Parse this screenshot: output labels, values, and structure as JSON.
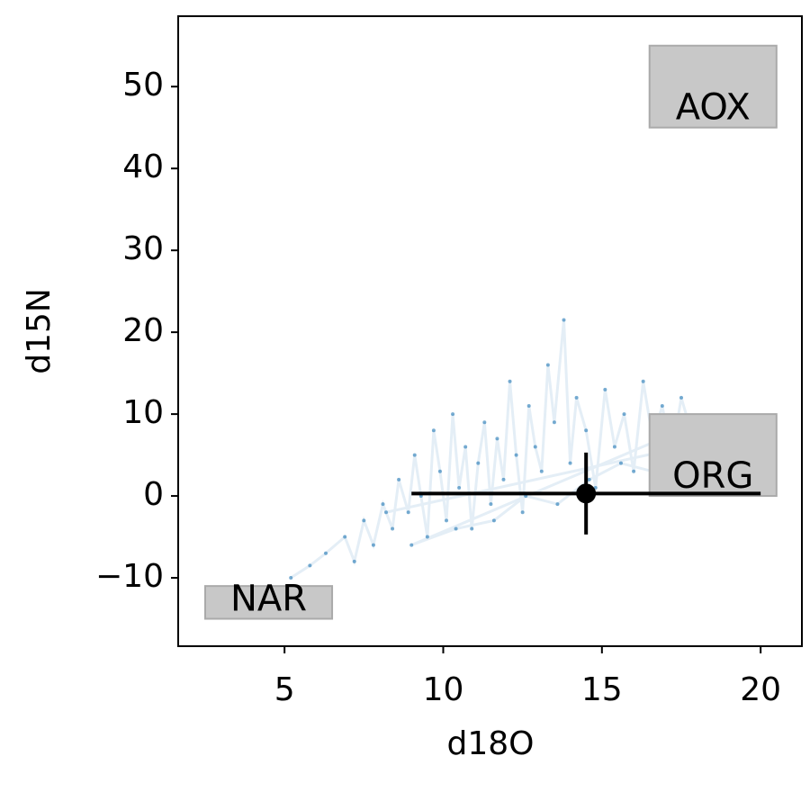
{
  "chart_data": {
    "type": "scatter",
    "xlabel": "d18O",
    "ylabel": "d15N",
    "xlim": [
      1.65,
      21.3
    ],
    "ylim": [
      -18.35,
      58.6
    ],
    "xticks": [
      5,
      10,
      15,
      20
    ],
    "yticks": [
      {
        "value": -10,
        "label": "−10"
      },
      0,
      10,
      20,
      30,
      40,
      50
    ],
    "points": {
      "color": "#1f77b4",
      "x": [
        5.2,
        5.8,
        6.3,
        6.9,
        7.2,
        7.5,
        7.8,
        8.1,
        8.4,
        8.6,
        8.9,
        9.1,
        9.3,
        9.5,
        9.7,
        9.9,
        10.1,
        10.3,
        10.5,
        10.7,
        10.9,
        11.1,
        11.3,
        11.5,
        11.7,
        11.9,
        12.1,
        12.3,
        12.5,
        12.7,
        12.9,
        13.1,
        13.3,
        13.5,
        13.8,
        14.0,
        14.2,
        14.5,
        14.8,
        15.1,
        15.4,
        15.7,
        16.0,
        16.3,
        16.6,
        16.9,
        17.2,
        17.5,
        17.8,
        18.1,
        9.0,
        10.4,
        11.6,
        12.6,
        13.6,
        14.6,
        15.6,
        16.6,
        17.6,
        8.2
      ],
      "y": [
        -10,
        -8.5,
        -7,
        -5,
        -8,
        -3,
        -6,
        -1,
        -4,
        2,
        -2,
        5,
        0,
        -5,
        8,
        3,
        -3,
        10,
        1,
        6,
        -4,
        4,
        9,
        -1,
        7,
        2,
        14,
        5,
        -2,
        11,
        6,
        3,
        16,
        9,
        21.5,
        4,
        12,
        8,
        1,
        13,
        6,
        10,
        3,
        14,
        7,
        11,
        5,
        12,
        8,
        9,
        -6,
        -4,
        -3,
        0,
        -1,
        2,
        4,
        3,
        6,
        -2
      ]
    },
    "regions": [
      {
        "label": "AOX",
        "xrange": [
          16.5,
          20.5
        ],
        "yrange": [
          45,
          55
        ]
      },
      {
        "label": "ORG",
        "xrange": [
          16.5,
          20.5
        ],
        "yrange": [
          0,
          10
        ]
      },
      {
        "label": "NAR",
        "xrange": [
          2.5,
          6.5
        ],
        "yrange": [
          -15,
          -11
        ]
      }
    ],
    "measurement": {
      "x": 14.5,
      "y": 0.3,
      "xerr": 5.5,
      "yerr": 5
    }
  }
}
